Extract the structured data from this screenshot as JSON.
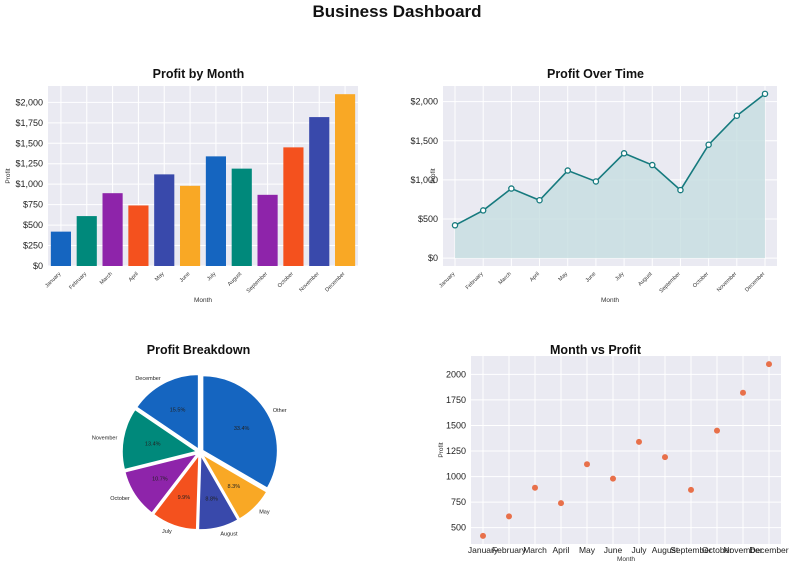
{
  "page": {
    "title": "Business Dashboard"
  },
  "colors": {
    "plot_bg": "#eaeaf2",
    "grid": "#ffffff",
    "palette": [
      "#1565c0",
      "#00897b",
      "#8e24aa",
      "#f4511e",
      "#3949ab",
      "#f9a825"
    ],
    "line": "#167a7e",
    "area_fill": "#c5dde0",
    "scatter": "#e8704a"
  },
  "chart_data": [
    {
      "type": "bar",
      "title": "Profit by Month",
      "xlabel": "Month",
      "ylabel": "Profit",
      "categories": [
        "January",
        "February",
        "March",
        "April",
        "May",
        "June",
        "July",
        "August",
        "September",
        "October",
        "November",
        "December"
      ],
      "values": [
        420,
        610,
        890,
        740,
        1120,
        980,
        1340,
        1190,
        870,
        1450,
        1820,
        2100
      ],
      "ylim": [
        0,
        2200
      ],
      "yticks": [
        0,
        250,
        500,
        750,
        1000,
        1250,
        1500,
        1750,
        2000
      ],
      "ytick_labels": [
        "$0",
        "$250",
        "$500",
        "$750",
        "$1,000",
        "$1,250",
        "$1,500",
        "$1,750",
        "$2,000"
      ],
      "grid": true
    },
    {
      "type": "area",
      "title": "Profit Over Time",
      "xlabel": "Month",
      "ylabel": "Profit",
      "categories": [
        "January",
        "February",
        "March",
        "April",
        "May",
        "June",
        "July",
        "August",
        "September",
        "October",
        "November",
        "December"
      ],
      "values": [
        420,
        610,
        890,
        740,
        1120,
        980,
        1340,
        1190,
        870,
        1450,
        1820,
        2100
      ],
      "ylim": [
        -100,
        2200
      ],
      "yticks": [
        0,
        500,
        1000,
        1500,
        2000
      ],
      "ytick_labels": [
        "$0",
        "$500",
        "$1,000",
        "$1,500",
        "$2,000"
      ],
      "grid": true
    },
    {
      "type": "pie",
      "title": "Profit Breakdown",
      "labels": [
        "Other",
        "May",
        "August",
        "July",
        "October",
        "November",
        "December"
      ],
      "percent_labels": [
        "33.4%",
        "8.3%",
        "8.8%",
        "9.9%",
        "10.7%",
        "13.4%",
        "15.5%"
      ],
      "values": [
        33.4,
        8.3,
        8.8,
        9.9,
        10.7,
        13.4,
        15.5
      ],
      "colors": [
        "#1565c0",
        "#f9a825",
        "#3949ab",
        "#f4511e",
        "#8e24aa",
        "#00897b",
        "#1565c0"
      ]
    },
    {
      "type": "scatter",
      "title": "Month vs Profit",
      "xlabel": "Month",
      "ylabel": "Profit",
      "categories": [
        "January",
        "February",
        "March",
        "April",
        "May",
        "June",
        "July",
        "August",
        "September",
        "October",
        "November",
        "December"
      ],
      "values": [
        420,
        610,
        890,
        740,
        1120,
        980,
        1340,
        1190,
        870,
        1450,
        1820,
        2100
      ],
      "ylim": [
        340,
        2180
      ],
      "yticks": [
        500,
        750,
        1000,
        1250,
        1500,
        1750,
        2000
      ],
      "grid": true
    }
  ]
}
